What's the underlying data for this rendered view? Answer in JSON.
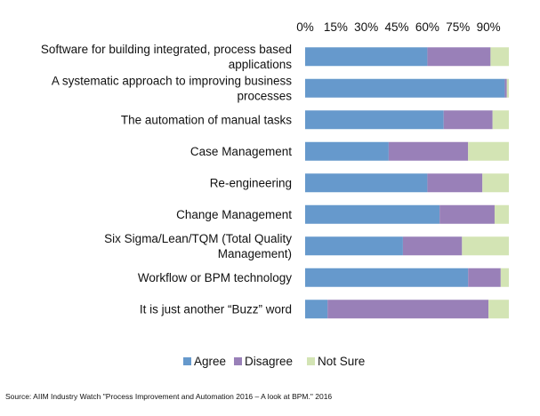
{
  "chart_data": {
    "type": "bar",
    "orientation": "horizontal",
    "stacked": true,
    "categories": [
      [
        "Software for building integrated, process based",
        "applications"
      ],
      [
        "A systematic approach to improving business",
        "processes"
      ],
      [
        "The automation of manual tasks"
      ],
      [
        "Case Management"
      ],
      [
        "Re-engineering"
      ],
      [
        "Change Management"
      ],
      [
        "Six Sigma/Lean/TQM (Total Quality",
        "Management)"
      ],
      [
        "Workflow or BPM technology"
      ],
      [
        "It is just another “Buzz” word"
      ]
    ],
    "series": [
      {
        "name": "Agree",
        "color": "#6699cc",
        "values": [
          60,
          98,
          68,
          41,
          60,
          66,
          48,
          80,
          11
        ]
      },
      {
        "name": "Disagree",
        "color": "#9980b8",
        "values": [
          31,
          1,
          24,
          39,
          27,
          27,
          29,
          16,
          79
        ]
      },
      {
        "name": "Not Sure",
        "color": "#d3e4b4",
        "values": [
          9,
          1,
          8,
          20,
          13,
          7,
          23,
          4,
          10
        ]
      }
    ],
    "xticks": [
      "0%",
      "15%",
      "30%",
      "45%",
      "60%",
      "75%",
      "90%"
    ],
    "xlim": [
      0,
      100
    ],
    "legend_position": "bottom",
    "grid": false
  },
  "source": "Source: AIIM Industry Watch \"Process Improvement and Automation 2016 – A look at BPM.\" 2016"
}
